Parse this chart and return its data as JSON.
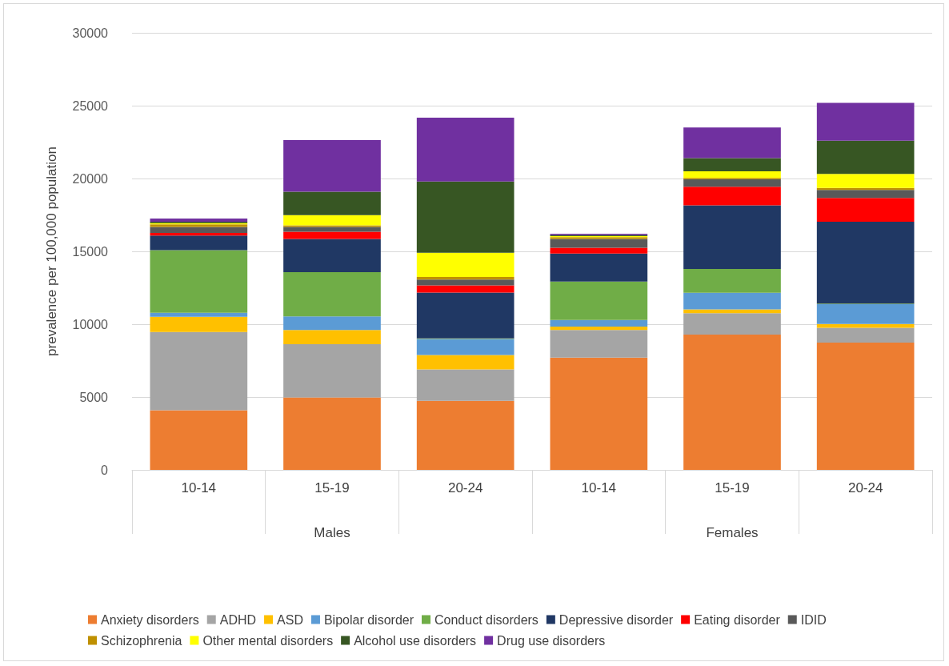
{
  "chart_data": {
    "type": "bar",
    "stacked": true,
    "ylabel": "prevalence per 100,000 population",
    "categories": [
      "10-14",
      "15-19",
      "20-24",
      "10-14",
      "15-19",
      "20-24"
    ],
    "annotations": [
      "Males",
      "Females"
    ],
    "ylim": [
      0,
      30000
    ],
    "yticks": [
      0,
      5000,
      10000,
      15000,
      20000,
      25000,
      30000
    ],
    "grid": "y",
    "legend": "bottom",
    "series": [
      {
        "name": "Anxiety disorders",
        "color": "#ed7d31",
        "values": [
          4100,
          4970,
          4740,
          7700,
          9290,
          8740
        ]
      },
      {
        "name": "ADHD",
        "color": "#a5a5a5",
        "values": [
          5370,
          3650,
          2150,
          1900,
          1460,
          1010
        ]
      },
      {
        "name": "ASD",
        "color": "#ffc000",
        "values": [
          1040,
          980,
          1000,
          240,
          270,
          270
        ]
      },
      {
        "name": "Bipolar disorder",
        "color": "#5b9bd5",
        "values": [
          270,
          930,
          1090,
          450,
          1130,
          1360
        ]
      },
      {
        "name": "Conduct disorders",
        "color": "#70ad47",
        "values": [
          4300,
          3040,
          50,
          2640,
          1640,
          30
        ]
      },
      {
        "name": "Depressive disorder",
        "color": "#203864",
        "values": [
          1000,
          2280,
          3140,
          1920,
          4370,
          5620
        ]
      },
      {
        "name": "Eating disorder",
        "color": "#ff0000",
        "values": [
          190,
          490,
          490,
          400,
          1280,
          1640
        ]
      },
      {
        "name": "IDID",
        "color": "#595959",
        "values": [
          400,
          330,
          400,
          600,
          510,
          550
        ]
      },
      {
        "name": "Schizophrenia",
        "color": "#bf9000",
        "values": [
          180,
          120,
          180,
          120,
          90,
          140
        ]
      },
      {
        "name": "Other mental disorders",
        "color": "#ffff00",
        "values": [
          90,
          700,
          1660,
          80,
          450,
          950
        ]
      },
      {
        "name": "Alcohol use disorders",
        "color": "#375623",
        "values": [
          90,
          1600,
          4900,
          70,
          910,
          2280
        ]
      },
      {
        "name": "Drug use disorders",
        "color": "#7030a0",
        "values": [
          220,
          3550,
          4370,
          90,
          2100,
          2600
        ]
      }
    ]
  }
}
